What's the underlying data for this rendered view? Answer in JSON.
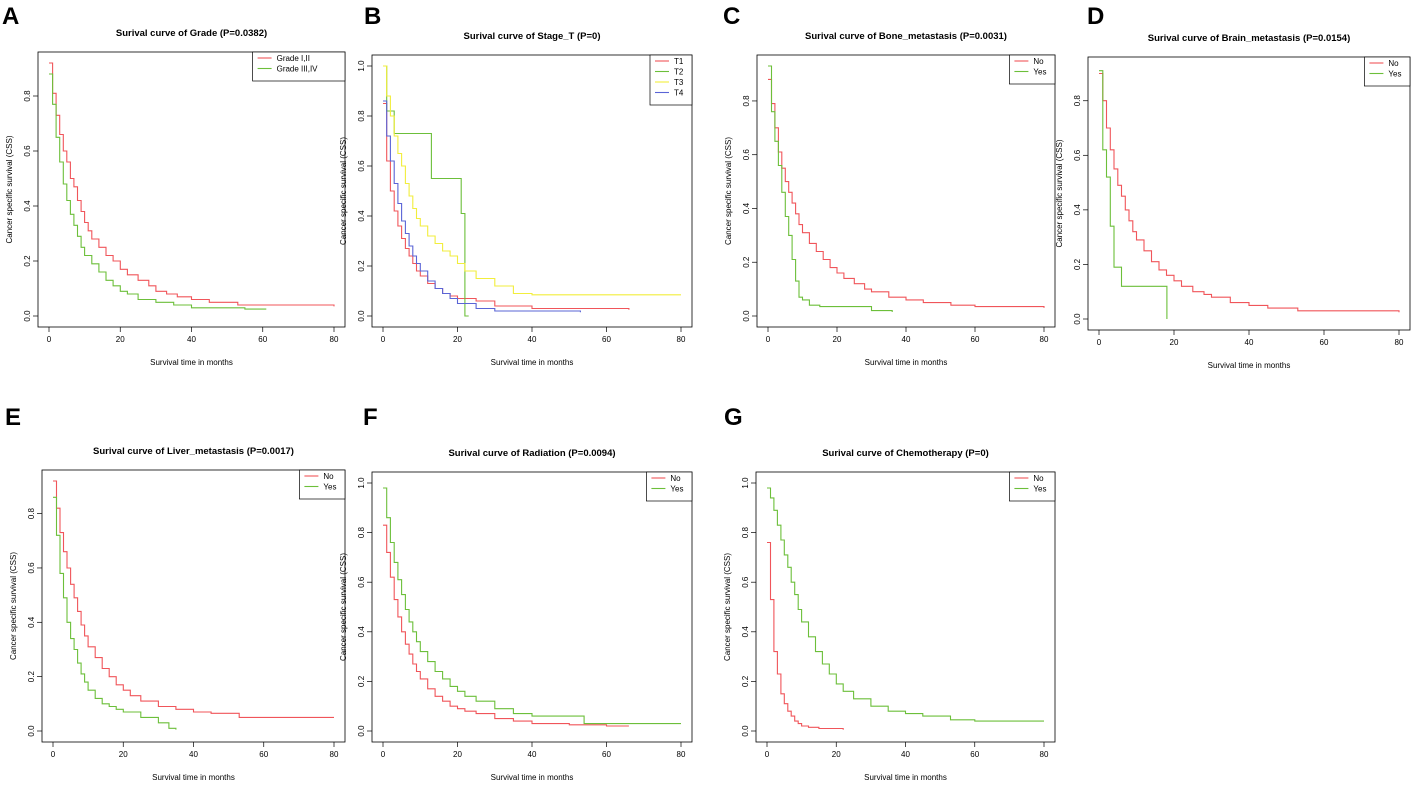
{
  "figure": {
    "xlabel": "Survival time in months",
    "ylabel": "Cancer specific survival (CSS)"
  },
  "colors": {
    "red": "#f0555a",
    "green": "#6cbf3a",
    "yellow": "#f2ee3c",
    "blue": "#5a64d6",
    "axis": "#000000"
  },
  "chart_data": [
    {
      "panel": "A",
      "type": "line",
      "title": "Surival curve of Grade (P=0.0382)",
      "xlabel": "Survival time in months",
      "ylabel": "Cancer specific survival (CSS)",
      "xlim": [
        0,
        80
      ],
      "ylim": [
        0,
        0.92
      ],
      "xticks": [
        0,
        20,
        40,
        60,
        80
      ],
      "yticks": [
        0.0,
        0.2,
        0.4,
        0.6,
        0.8
      ],
      "legend_position": "top-right",
      "series": [
        {
          "name": "Grade I,II",
          "color": "#f0555a",
          "x": [
            0,
            1,
            2,
            3,
            4,
            5,
            6,
            7,
            8,
            9,
            10,
            11,
            12,
            14,
            16,
            18,
            20,
            22,
            25,
            28,
            30,
            33,
            36,
            40,
            45,
            50,
            53,
            60,
            80
          ],
          "y": [
            0.92,
            0.81,
            0.73,
            0.66,
            0.6,
            0.56,
            0.5,
            0.47,
            0.42,
            0.38,
            0.34,
            0.31,
            0.28,
            0.25,
            0.22,
            0.2,
            0.17,
            0.15,
            0.13,
            0.11,
            0.09,
            0.08,
            0.07,
            0.06,
            0.05,
            0.05,
            0.04,
            0.04,
            0.035
          ]
        },
        {
          "name": "Grade III,IV",
          "color": "#6cbf3a",
          "x": [
            0,
            1,
            2,
            3,
            4,
            5,
            6,
            7,
            8,
            9,
            10,
            12,
            14,
            16,
            18,
            20,
            22,
            25,
            30,
            35,
            40,
            45,
            50,
            55,
            61
          ],
          "y": [
            0.88,
            0.77,
            0.65,
            0.56,
            0.48,
            0.42,
            0.37,
            0.33,
            0.29,
            0.25,
            0.22,
            0.19,
            0.16,
            0.13,
            0.11,
            0.09,
            0.08,
            0.06,
            0.05,
            0.04,
            0.03,
            0.03,
            0.03,
            0.025,
            0.025
          ]
        }
      ]
    },
    {
      "panel": "B",
      "type": "line",
      "title": "Surival curve of Stage_T (P=0)",
      "xlabel": "Survival time in months",
      "ylabel": "Cancer specific survival (CSS)",
      "xlim": [
        0,
        80
      ],
      "ylim": [
        0,
        1.0
      ],
      "xticks": [
        0,
        20,
        40,
        60,
        80
      ],
      "yticks": [
        0.0,
        0.2,
        0.4,
        0.6,
        0.8,
        1.0
      ],
      "legend_position": "top-right",
      "series": [
        {
          "name": "T1",
          "color": "#f0555a",
          "x": [
            0,
            1,
            2,
            3,
            4,
            5,
            6,
            7,
            8,
            9,
            10,
            12,
            14,
            16,
            18,
            20,
            25,
            30,
            40,
            50,
            66
          ],
          "y": [
            0.85,
            0.62,
            0.5,
            0.42,
            0.36,
            0.31,
            0.27,
            0.24,
            0.21,
            0.18,
            0.16,
            0.13,
            0.11,
            0.09,
            0.08,
            0.07,
            0.06,
            0.04,
            0.03,
            0.03,
            0.025
          ]
        },
        {
          "name": "T2",
          "color": "#6cbf3a",
          "x": [
            0,
            1,
            3,
            4,
            9,
            13,
            21,
            22,
            23
          ],
          "y": [
            1.0,
            0.82,
            0.73,
            0.73,
            0.73,
            0.55,
            0.41,
            0.0,
            0.0
          ]
        },
        {
          "name": "T3",
          "color": "#f2ee3c",
          "x": [
            0,
            1,
            2,
            3,
            4,
            5,
            6,
            7,
            8,
            9,
            10,
            12,
            14,
            16,
            18,
            20,
            22,
            25,
            30,
            35,
            40,
            80
          ],
          "y": [
            1.0,
            0.88,
            0.8,
            0.72,
            0.65,
            0.6,
            0.53,
            0.48,
            0.43,
            0.39,
            0.36,
            0.32,
            0.29,
            0.26,
            0.24,
            0.21,
            0.18,
            0.15,
            0.12,
            0.09,
            0.085,
            0.085
          ]
        },
        {
          "name": "T4",
          "color": "#5a64d6",
          "x": [
            0,
            1,
            2,
            3,
            4,
            5,
            6,
            7,
            8,
            9,
            10,
            12,
            14,
            16,
            18,
            20,
            25,
            30,
            40,
            53
          ],
          "y": [
            0.86,
            0.72,
            0.62,
            0.53,
            0.45,
            0.38,
            0.33,
            0.28,
            0.24,
            0.21,
            0.18,
            0.14,
            0.11,
            0.09,
            0.07,
            0.05,
            0.03,
            0.02,
            0.02,
            0.015
          ]
        }
      ]
    },
    {
      "panel": "C",
      "type": "line",
      "title": "Surival curve of Bone_metastasis (P=0.0031)",
      "xlabel": "Survival time in months",
      "ylabel": "Cancer specific survival (CSS)",
      "xlim": [
        0,
        80
      ],
      "ylim": [
        0,
        0.93
      ],
      "xticks": [
        0,
        20,
        40,
        60,
        80
      ],
      "yticks": [
        0.0,
        0.2,
        0.4,
        0.6,
        0.8
      ],
      "legend_position": "top-right",
      "series": [
        {
          "name": "No",
          "color": "#f0555a",
          "x": [
            0,
            1,
            2,
            3,
            4,
            5,
            6,
            7,
            8,
            9,
            10,
            12,
            14,
            16,
            18,
            20,
            22,
            25,
            28,
            30,
            35,
            40,
            45,
            53,
            60,
            80
          ],
          "y": [
            0.88,
            0.79,
            0.7,
            0.61,
            0.55,
            0.5,
            0.46,
            0.42,
            0.38,
            0.34,
            0.31,
            0.27,
            0.24,
            0.21,
            0.18,
            0.16,
            0.14,
            0.12,
            0.1,
            0.09,
            0.07,
            0.06,
            0.05,
            0.04,
            0.035,
            0.03
          ]
        },
        {
          "name": "Yes",
          "color": "#6cbf3a",
          "x": [
            0,
            1,
            2,
            3,
            4,
            5,
            6,
            7,
            8,
            9,
            10,
            12,
            15,
            20,
            30,
            36
          ],
          "y": [
            0.93,
            0.76,
            0.65,
            0.56,
            0.46,
            0.37,
            0.3,
            0.21,
            0.13,
            0.07,
            0.06,
            0.04,
            0.035,
            0.035,
            0.02,
            0.015
          ]
        }
      ]
    },
    {
      "panel": "D",
      "type": "line",
      "title": "Surival curve of Brain_metastasis (P=0.0154)",
      "xlabel": "Survival time in months",
      "ylabel": "Cancer specific survival (CSS)",
      "xlim": [
        0,
        80
      ],
      "ylim": [
        0,
        0.92
      ],
      "xticks": [
        0,
        20,
        40,
        60,
        80
      ],
      "yticks": [
        0.0,
        0.2,
        0.4,
        0.6,
        0.8
      ],
      "legend_position": "top-right",
      "series": [
        {
          "name": "No",
          "color": "#f0555a",
          "x": [
            0,
            1,
            2,
            3,
            4,
            5,
            6,
            7,
            8,
            9,
            10,
            12,
            14,
            16,
            18,
            20,
            22,
            25,
            28,
            30,
            35,
            40,
            45,
            53,
            60,
            80
          ],
          "y": [
            0.9,
            0.8,
            0.7,
            0.62,
            0.55,
            0.49,
            0.45,
            0.4,
            0.36,
            0.32,
            0.29,
            0.25,
            0.21,
            0.18,
            0.16,
            0.14,
            0.12,
            0.1,
            0.09,
            0.08,
            0.06,
            0.05,
            0.04,
            0.03,
            0.03,
            0.025
          ]
        },
        {
          "name": "Yes",
          "color": "#6cbf3a",
          "x": [
            0,
            1,
            2,
            3,
            4,
            5,
            6,
            18,
            18.1
          ],
          "y": [
            0.91,
            0.62,
            0.52,
            0.34,
            0.19,
            0.19,
            0.12,
            0.12,
            0.0
          ]
        }
      ]
    },
    {
      "panel": "E",
      "type": "line",
      "title": "Surival curve of Liver_metastasis (P=0.0017)",
      "xlabel": "Survival time in months",
      "ylabel": "Cancer specific survival (CSS)",
      "xlim": [
        0,
        80
      ],
      "ylim": [
        0,
        0.92
      ],
      "xticks": [
        0,
        20,
        40,
        60,
        80
      ],
      "yticks": [
        0.0,
        0.2,
        0.4,
        0.6,
        0.8
      ],
      "legend_position": "top-right",
      "series": [
        {
          "name": "No",
          "color": "#f0555a",
          "x": [
            0,
            1,
            2,
            3,
            4,
            5,
            6,
            7,
            8,
            9,
            10,
            12,
            14,
            16,
            18,
            20,
            22,
            25,
            30,
            35,
            40,
            45,
            53,
            60,
            80
          ],
          "y": [
            0.92,
            0.82,
            0.73,
            0.66,
            0.6,
            0.54,
            0.49,
            0.44,
            0.39,
            0.35,
            0.31,
            0.27,
            0.23,
            0.2,
            0.17,
            0.15,
            0.13,
            0.11,
            0.09,
            0.08,
            0.07,
            0.065,
            0.05,
            0.05,
            0.05
          ]
        },
        {
          "name": "Yes",
          "color": "#6cbf3a",
          "x": [
            0,
            1,
            2,
            3,
            4,
            5,
            6,
            7,
            8,
            9,
            10,
            12,
            14,
            16,
            18,
            20,
            25,
            30,
            33,
            35
          ],
          "y": [
            0.86,
            0.72,
            0.58,
            0.49,
            0.4,
            0.34,
            0.3,
            0.25,
            0.21,
            0.18,
            0.15,
            0.12,
            0.1,
            0.09,
            0.08,
            0.07,
            0.05,
            0.03,
            0.01,
            0.005
          ]
        }
      ]
    },
    {
      "panel": "F",
      "type": "line",
      "title": "Surival curve of Radiation (P=0.0094)",
      "xlabel": "Survival time in months",
      "ylabel": "Cancer specific survival (CSS)",
      "xlim": [
        0,
        80
      ],
      "ylim": [
        0,
        1.0
      ],
      "xticks": [
        0,
        20,
        40,
        60,
        80
      ],
      "yticks": [
        0.0,
        0.2,
        0.4,
        0.6,
        0.8,
        1.0
      ],
      "legend_position": "top-right",
      "series": [
        {
          "name": "No",
          "color": "#f0555a",
          "x": [
            0,
            1,
            2,
            3,
            4,
            5,
            6,
            7,
            8,
            9,
            10,
            12,
            14,
            16,
            18,
            20,
            22,
            25,
            30,
            35,
            40,
            50,
            60,
            66
          ],
          "y": [
            0.83,
            0.72,
            0.62,
            0.53,
            0.46,
            0.4,
            0.35,
            0.31,
            0.27,
            0.24,
            0.21,
            0.17,
            0.14,
            0.12,
            0.1,
            0.09,
            0.08,
            0.07,
            0.05,
            0.04,
            0.03,
            0.025,
            0.02,
            0.02
          ]
        },
        {
          "name": "Yes",
          "color": "#6cbf3a",
          "x": [
            0,
            1,
            2,
            3,
            4,
            5,
            6,
            7,
            8,
            9,
            10,
            12,
            14,
            16,
            18,
            20,
            22,
            25,
            30,
            35,
            40,
            53,
            54,
            80
          ],
          "y": [
            0.98,
            0.86,
            0.76,
            0.68,
            0.61,
            0.55,
            0.49,
            0.44,
            0.4,
            0.36,
            0.32,
            0.28,
            0.24,
            0.21,
            0.18,
            0.16,
            0.14,
            0.12,
            0.09,
            0.07,
            0.06,
            0.06,
            0.03,
            0.03
          ]
        }
      ]
    },
    {
      "panel": "G",
      "type": "line",
      "title": "Surival curve of Chemotherapy (P=0)",
      "xlabel": "Survival time in months",
      "ylabel": "Cancer specific survival (CSS)",
      "xlim": [
        0,
        80
      ],
      "ylim": [
        0,
        1.0
      ],
      "xticks": [
        0,
        20,
        40,
        60,
        80
      ],
      "yticks": [
        0.0,
        0.2,
        0.4,
        0.6,
        0.8,
        1.0
      ],
      "legend_position": "top-right",
      "series": [
        {
          "name": "No",
          "color": "#f0555a",
          "x": [
            0,
            1,
            2,
            3,
            4,
            5,
            6,
            7,
            8,
            9,
            10,
            12,
            15,
            18,
            22
          ],
          "y": [
            0.76,
            0.53,
            0.32,
            0.23,
            0.15,
            0.11,
            0.08,
            0.06,
            0.04,
            0.03,
            0.02,
            0.015,
            0.01,
            0.01,
            0.005
          ]
        },
        {
          "name": "Yes",
          "color": "#6cbf3a",
          "x": [
            0,
            1,
            2,
            3,
            4,
            5,
            6,
            7,
            8,
            9,
            10,
            12,
            14,
            16,
            18,
            20,
            22,
            25,
            30,
            35,
            40,
            45,
            53,
            60,
            80
          ],
          "y": [
            0.98,
            0.94,
            0.89,
            0.83,
            0.77,
            0.71,
            0.66,
            0.6,
            0.55,
            0.49,
            0.44,
            0.38,
            0.32,
            0.27,
            0.23,
            0.19,
            0.16,
            0.13,
            0.1,
            0.08,
            0.07,
            0.06,
            0.045,
            0.04,
            0.04
          ]
        }
      ]
    }
  ]
}
